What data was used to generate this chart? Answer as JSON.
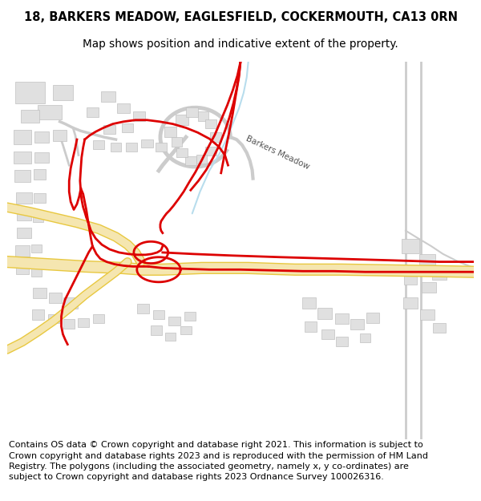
{
  "title_line1": "18, BARKERS MEADOW, EAGLESFIELD, COCKERMOUTH, CA13 0RN",
  "title_line2": "Map shows position and indicative extent of the property.",
  "footer": "Contains OS data © Crown copyright and database right 2021. This information is subject to Crown copyright and database rights 2023 and is reproduced with the permission of HM Land Registry. The polygons (including the associated geometry, namely x, y co-ordinates) are subject to Crown copyright and database rights 2023 Ordnance Survey 100026316.",
  "bg_color": "#ffffff",
  "title_fontsize": 10.5,
  "subtitle_fontsize": 9.8,
  "footer_fontsize": 8.0,
  "road_yellow_fill": "#f5e6b0",
  "road_yellow_edge": "#e8c840",
  "road_gray_fill": "#e0e0e0",
  "road_gray_edge": "#cccccc",
  "building_fill": "#e0e0e0",
  "building_edge": "#c0c0c0",
  "boundary_red": "#dd0000",
  "stream_blue": "#b8dded",
  "label_text": "Barkers Meadow",
  "label_color": "#555555"
}
